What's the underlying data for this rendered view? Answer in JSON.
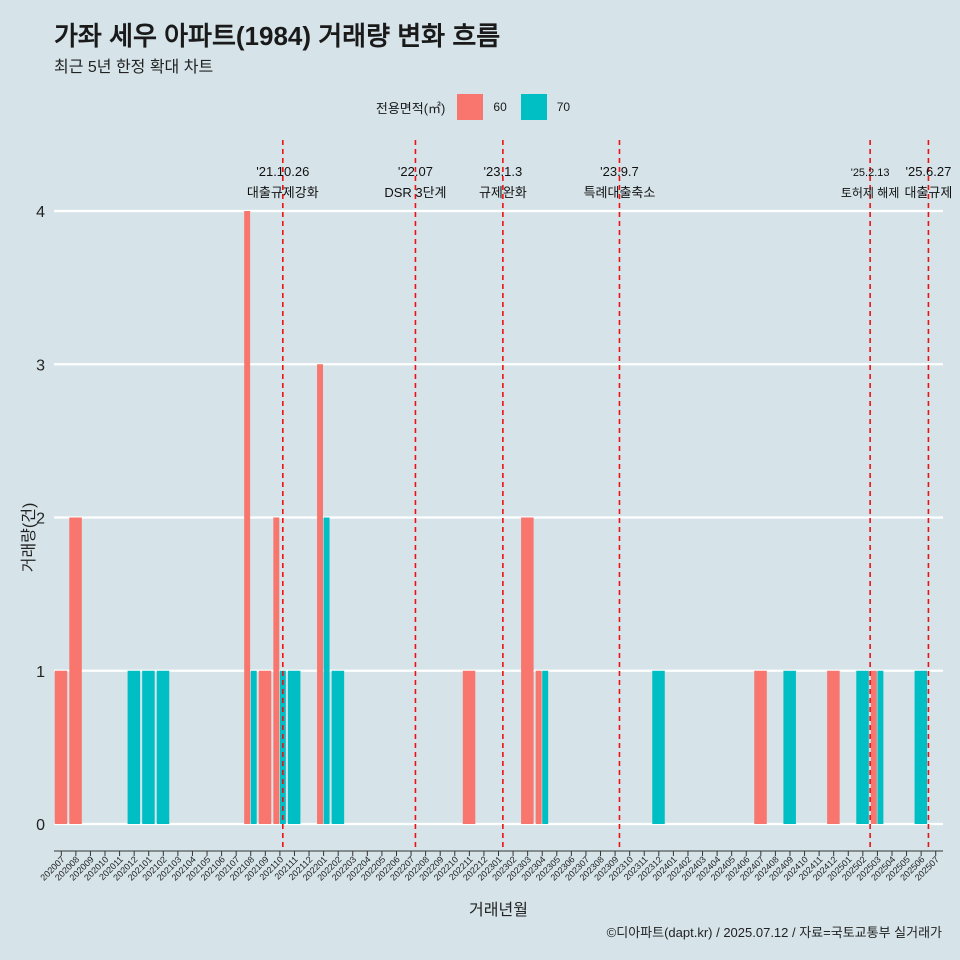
{
  "title": "가좌 세우 아파트(1984) 거래량 변화 흐름",
  "subtitle": "최근 5년 한정 확대 차트",
  "caption": "©디아파트(dapt.kr) / 2025.07.12 / 자료=국토교통부 실거래가",
  "legend": {
    "title": "전용면적(㎡)",
    "items": [
      {
        "label": "60",
        "color": "#f8766d"
      },
      {
        "label": "70",
        "color": "#00bfc4"
      }
    ]
  },
  "chart_data": {
    "type": "bar",
    "xlabel": "거래년월",
    "ylabel": "거래량(건)",
    "ylim": [
      0,
      4
    ],
    "yticks": [
      0,
      1,
      2,
      3,
      4
    ],
    "categories": [
      "202007",
      "202008",
      "202009",
      "202010",
      "202011",
      "202012",
      "202101",
      "202102",
      "202103",
      "202104",
      "202105",
      "202106",
      "202107",
      "202108",
      "202109",
      "202110",
      "202111",
      "202112",
      "202201",
      "202202",
      "202203",
      "202204",
      "202205",
      "202206",
      "202207",
      "202208",
      "202209",
      "202210",
      "202211",
      "202212",
      "202301",
      "202302",
      "202303",
      "202304",
      "202305",
      "202306",
      "202307",
      "202308",
      "202309",
      "202310",
      "202311",
      "202312",
      "202401",
      "202402",
      "202403",
      "202404",
      "202405",
      "202406",
      "202407",
      "202408",
      "202409",
      "202410",
      "202411",
      "202412",
      "202501",
      "202502",
      "202503",
      "202504",
      "202505",
      "202506",
      "202507"
    ],
    "series": [
      {
        "name": "60",
        "color": "#f8766d",
        "values": [
          1,
          2,
          0,
          0,
          0,
          0,
          0,
          0,
          0,
          0,
          0,
          0,
          0,
          4,
          1,
          2,
          0,
          0,
          3,
          0,
          0,
          0,
          0,
          0,
          0,
          0,
          0,
          0,
          1,
          0,
          0,
          0,
          2,
          1,
          0,
          0,
          0,
          0,
          0,
          0,
          0,
          0,
          0,
          0,
          0,
          0,
          0,
          0,
          1,
          0,
          0,
          0,
          0,
          1,
          0,
          0,
          1,
          0,
          0,
          0,
          0
        ]
      },
      {
        "name": "70",
        "color": "#00bfc4",
        "values": [
          0,
          0,
          0,
          0,
          0,
          1,
          1,
          1,
          0,
          0,
          0,
          0,
          0,
          1,
          0,
          1,
          1,
          0,
          2,
          1,
          0,
          0,
          0,
          0,
          0,
          0,
          0,
          0,
          0,
          0,
          0,
          0,
          0,
          1,
          0,
          0,
          0,
          0,
          0,
          0,
          0,
          1,
          0,
          0,
          0,
          0,
          0,
          0,
          0,
          0,
          1,
          0,
          0,
          0,
          0,
          1,
          1,
          0,
          0,
          1,
          0
        ]
      }
    ],
    "events": [
      {
        "index": 15.2,
        "date": "'21.10.26",
        "label": "대출규제강화"
      },
      {
        "index": 24.3,
        "date": "'22.07",
        "label": "DSR 3단계"
      },
      {
        "index": 30.3,
        "date": "'23.1.3",
        "label": "규제완화"
      },
      {
        "index": 38.3,
        "date": "'23.9.7",
        "label": "특례대출축소"
      },
      {
        "index": 55.5,
        "date": "'25.2.13",
        "label": "토허제 해제"
      },
      {
        "index": 59.5,
        "date": "'25.6.27",
        "label": "대출규제"
      }
    ]
  }
}
